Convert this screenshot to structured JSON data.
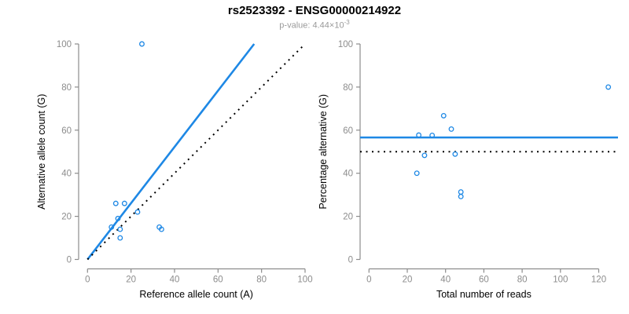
{
  "header": {
    "title": "rs2523392 - ENSG00000214922",
    "subtitle_prefix": "p-value: 4.44×10",
    "subtitle_exponent": "-3"
  },
  "colors": {
    "accent_blue": "#1E88E5",
    "axis_gray": "#8C8C8C",
    "title_black": "#000000",
    "subtitle_gray": "#9A9A9A"
  },
  "chart_data": [
    {
      "type": "scatter",
      "xlabel": "Reference allele count (A)",
      "ylabel": "Alternative allele count (G)",
      "xlim": [
        0,
        100
      ],
      "ylim": [
        0,
        100
      ],
      "xticks": [
        0,
        20,
        40,
        60,
        80,
        100
      ],
      "yticks": [
        0,
        20,
        40,
        60,
        80,
        100
      ],
      "grid": false,
      "points": [
        [
          13,
          26
        ],
        [
          17,
          26
        ],
        [
          14,
          19
        ],
        [
          11,
          15
        ],
        [
          23,
          22
        ],
        [
          15,
          14
        ],
        [
          15,
          10
        ],
        [
          33,
          15
        ],
        [
          34,
          14
        ],
        [
          25,
          100
        ]
      ],
      "lines": [
        {
          "name": "allelic-ratio-fit",
          "style": "solid",
          "color": "blue",
          "points": [
            [
              0,
              0
            ],
            [
              76.6,
              100
            ]
          ]
        },
        {
          "name": "identity-line",
          "style": "dotted",
          "color": "black",
          "points": [
            [
              0,
              0
            ],
            [
              100,
              100
            ]
          ]
        }
      ]
    },
    {
      "type": "scatter",
      "xlabel": "Total number of reads",
      "ylabel": "Percentage alternative (G)",
      "xlim": [
        0,
        120
      ],
      "ylim": [
        0,
        100
      ],
      "xticks": [
        0,
        20,
        40,
        60,
        80,
        100,
        120
      ],
      "yticks": [
        0,
        20,
        40,
        60,
        80,
        100
      ],
      "grid": false,
      "points": [
        [
          39,
          66.7
        ],
        [
          43,
          60.5
        ],
        [
          33,
          57.6
        ],
        [
          26,
          57.7
        ],
        [
          45,
          48.9
        ],
        [
          29,
          48.3
        ],
        [
          25,
          40
        ],
        [
          48,
          31.3
        ],
        [
          48,
          29.2
        ],
        [
          125,
          80
        ]
      ],
      "lines": [
        {
          "name": "mean-percentage-line",
          "style": "solid",
          "color": "blue",
          "y": 56.6
        },
        {
          "name": "fifty-percent-line",
          "style": "dotted",
          "color": "black",
          "y": 50
        }
      ]
    }
  ]
}
